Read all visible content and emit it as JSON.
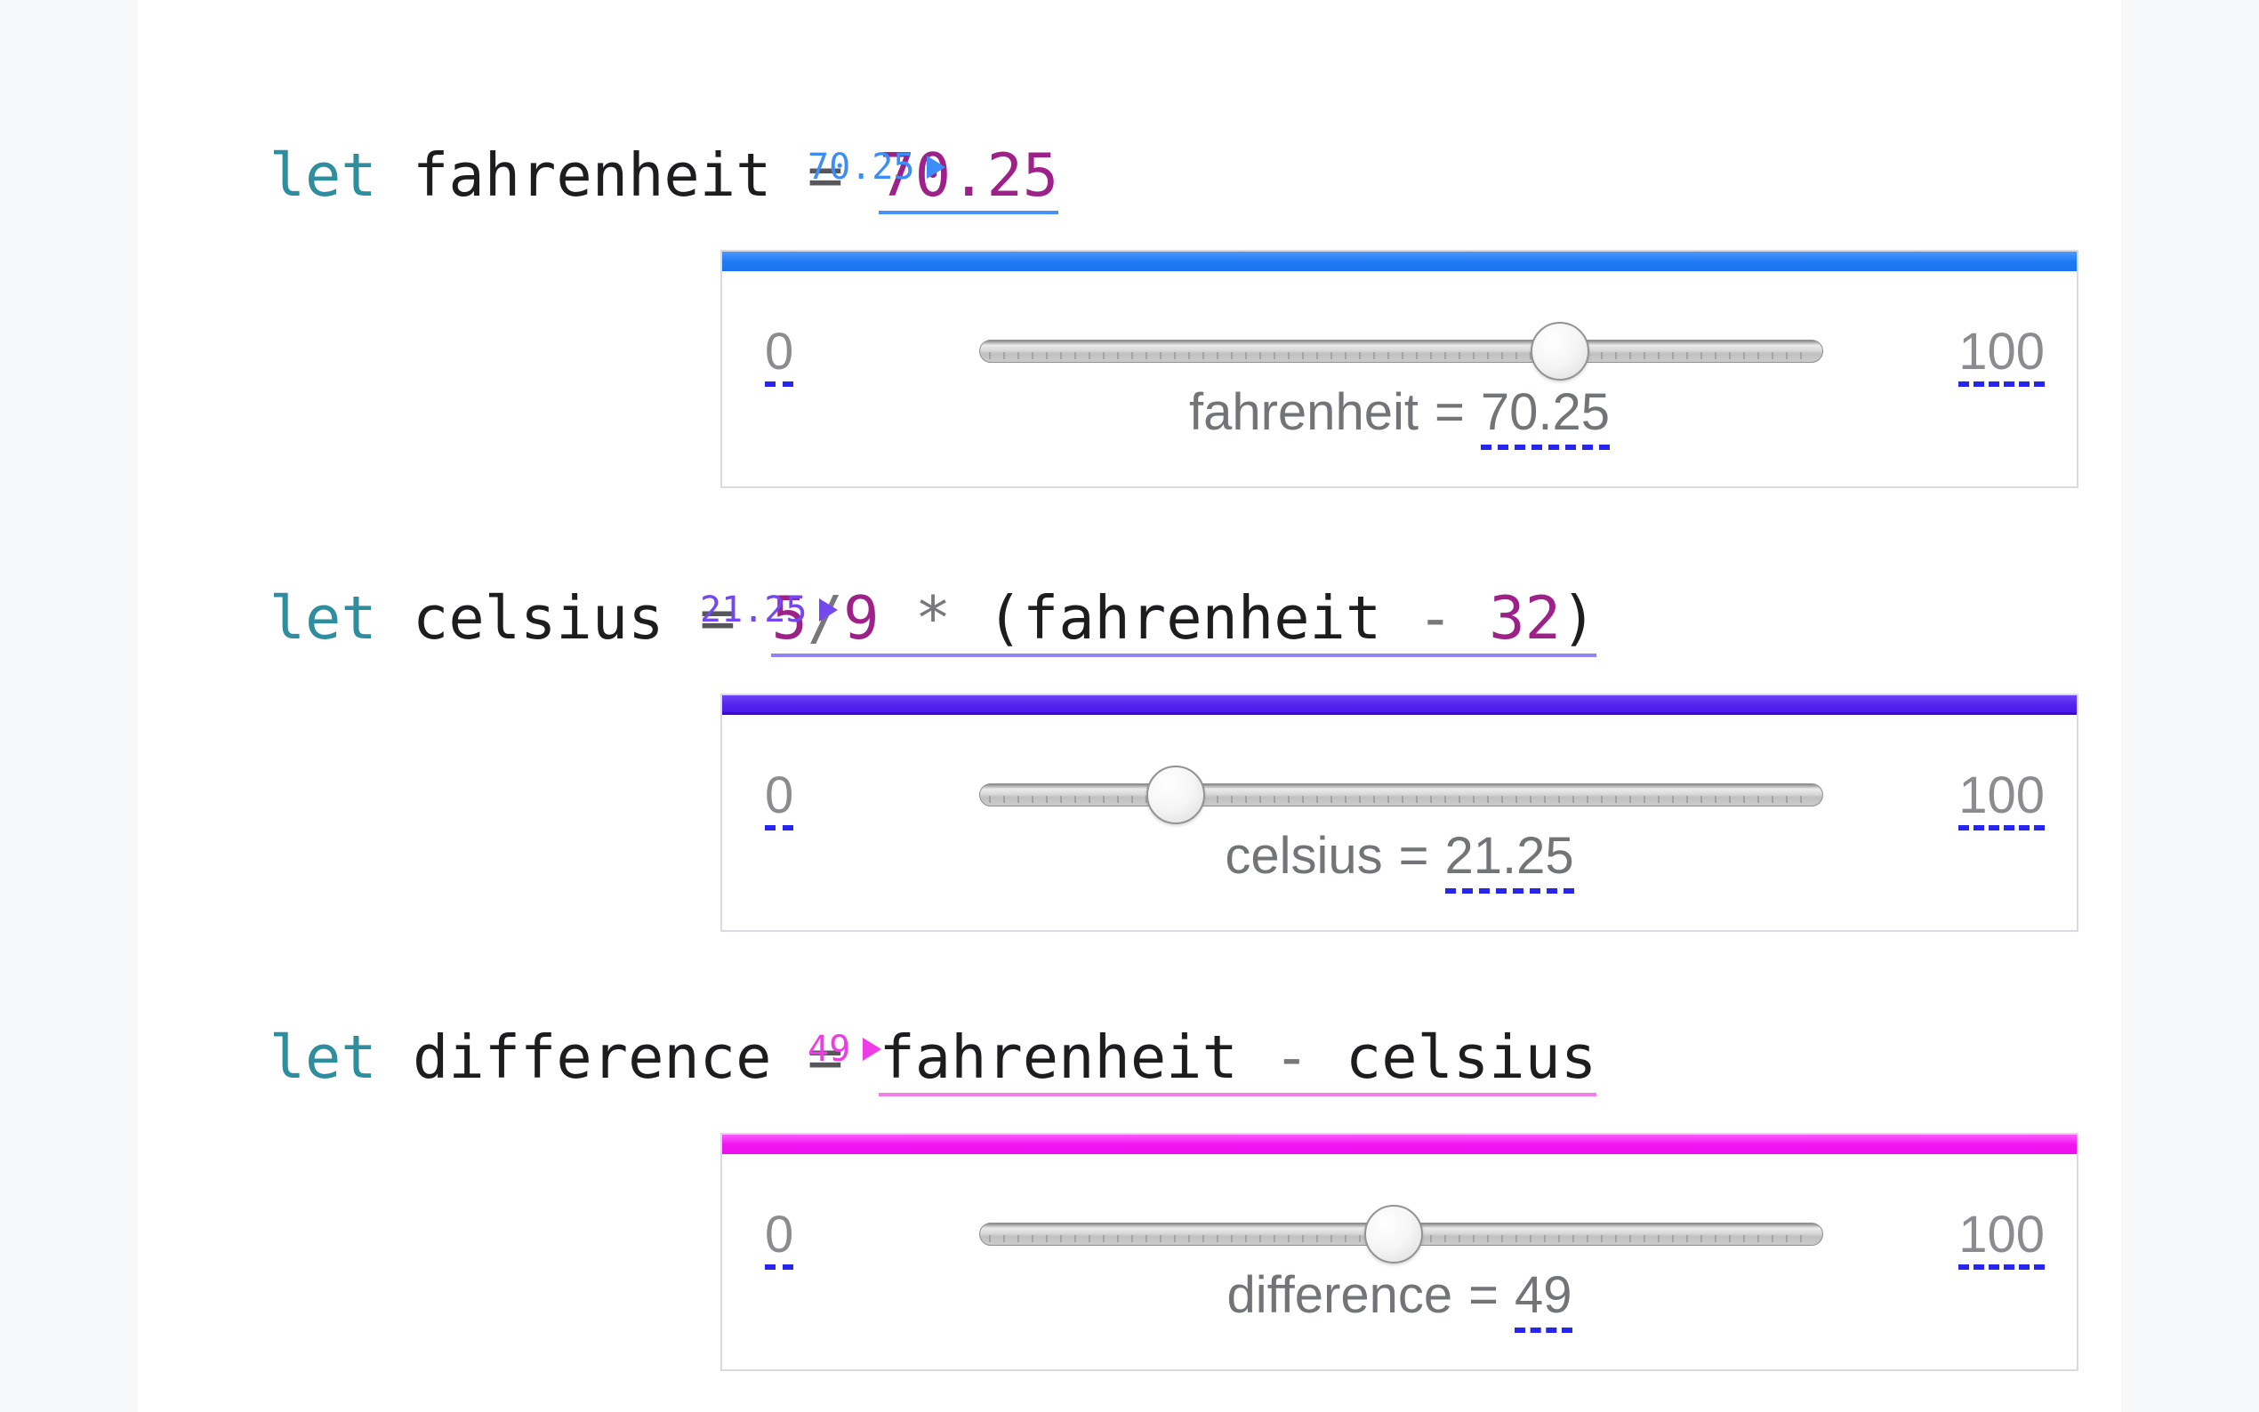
{
  "colors": {
    "dashed_underline": "#2626ef",
    "panel_border": "#d9dae4",
    "code_plain": "#1d1d1f",
    "code_keyword": "#2e8d9e",
    "code_number": "#9e2189",
    "code_operator": "#77777c",
    "panel_text": "#737478"
  },
  "code_lines": [
    {
      "keyword": "let",
      "name": "fahrenheit",
      "assign": "=",
      "expression": [
        {
          "text": "70.25",
          "type": "num"
        }
      ],
      "result": "70.25",
      "accent": "#3d8df8",
      "underline": "#4a90f7"
    },
    {
      "keyword": "let",
      "name": "celsius",
      "assign": "=",
      "expression": [
        {
          "text": "5",
          "type": "num"
        },
        {
          "text": "/",
          "type": "op"
        },
        {
          "text": "9",
          "type": "num"
        },
        {
          "text": " ",
          "type": "plain"
        },
        {
          "text": "*",
          "type": "op"
        },
        {
          "text": " (",
          "type": "plain"
        },
        {
          "text": "fahrenheit",
          "type": "plain"
        },
        {
          "text": " ",
          "type": "plain"
        },
        {
          "text": "-",
          "type": "op"
        },
        {
          "text": " ",
          "type": "plain"
        },
        {
          "text": "32",
          "type": "num"
        },
        {
          "text": ")",
          "type": "plain"
        }
      ],
      "result": "21.25",
      "accent": "#7348ef",
      "underline": "#9083f3"
    },
    {
      "keyword": "let",
      "name": "difference",
      "assign": "=",
      "expression": [
        {
          "text": "fahrenheit",
          "type": "plain"
        },
        {
          "text": " ",
          "type": "plain"
        },
        {
          "text": "-",
          "type": "op"
        },
        {
          "text": " ",
          "type": "plain"
        },
        {
          "text": "celsius",
          "type": "plain"
        }
      ],
      "result": "49",
      "accent": "#ee3be6",
      "underline": "#f57fe8"
    }
  ],
  "panels": [
    {
      "var": "fahrenheit",
      "eq": "=",
      "value_text": "70.25",
      "value": 70.25,
      "min": "0",
      "max": "100",
      "min_value": 0,
      "max_value": 100,
      "bar_top": "#4f97f9",
      "bar_mid": "#1f7bf5",
      "bar_bottom": "#1b72ee",
      "bar_edge": ""
    },
    {
      "var": "celsius",
      "eq": "=",
      "value_text": "21.25",
      "value": 21.25,
      "min": "0",
      "max": "100",
      "min_value": 0,
      "max_value": 100,
      "bar_top": "#6d42f6",
      "bar_mid": "#5526f0",
      "bar_bottom": "#4a18e8",
      "bar_edge": "#4109c9"
    },
    {
      "var": "difference",
      "eq": "=",
      "value_text": "49",
      "value": 49,
      "min": "0",
      "max": "100",
      "min_value": 0,
      "max_value": 100,
      "bar_top": "#fc5dfc",
      "bar_mid": "#f215f2",
      "bar_bottom": "#ee0fee",
      "bar_edge": ""
    }
  ]
}
